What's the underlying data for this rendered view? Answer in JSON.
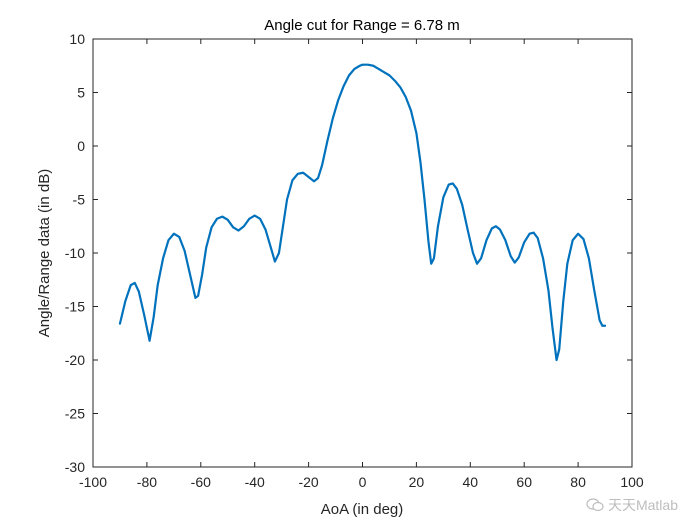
{
  "chart_data": {
    "type": "line",
    "title": "Angle cut for Range = 6.78 m",
    "xlabel": "AoA (in deg)",
    "ylabel": "Angle/Range data (in dB)",
    "xlim": [
      -100,
      100
    ],
    "ylim": [
      -30,
      10
    ],
    "xticks": [
      -100,
      -80,
      -60,
      -40,
      -20,
      0,
      20,
      40,
      60,
      80,
      100
    ],
    "yticks": [
      -30,
      -25,
      -20,
      -15,
      -10,
      -5,
      0,
      5,
      10
    ],
    "grid": false,
    "series": [
      {
        "color": "#0072BD",
        "points": [
          [
            -90,
            -16.6
          ],
          [
            -88,
            -14.5
          ],
          [
            -86,
            -13.0
          ],
          [
            -84.5,
            -12.8
          ],
          [
            -83,
            -13.6
          ],
          [
            -81,
            -15.8
          ],
          [
            -79,
            -18.2
          ],
          [
            -77.5,
            -16.0
          ],
          [
            -76,
            -13.0
          ],
          [
            -74,
            -10.5
          ],
          [
            -72,
            -8.8
          ],
          [
            -70,
            -8.2
          ],
          [
            -68,
            -8.5
          ],
          [
            -66,
            -9.8
          ],
          [
            -64,
            -12.0
          ],
          [
            -62,
            -14.2
          ],
          [
            -61,
            -14.0
          ],
          [
            -59.5,
            -12.0
          ],
          [
            -58,
            -9.5
          ],
          [
            -56,
            -7.6
          ],
          [
            -54,
            -6.8
          ],
          [
            -52,
            -6.6
          ],
          [
            -50,
            -6.9
          ],
          [
            -48,
            -7.6
          ],
          [
            -46,
            -7.9
          ],
          [
            -44,
            -7.5
          ],
          [
            -42,
            -6.8
          ],
          [
            -40,
            -6.5
          ],
          [
            -38,
            -6.8
          ],
          [
            -36,
            -7.8
          ],
          [
            -34,
            -9.5
          ],
          [
            -32.5,
            -10.8
          ],
          [
            -31,
            -10.0
          ],
          [
            -29.5,
            -7.5
          ],
          [
            -28,
            -5.0
          ],
          [
            -26,
            -3.2
          ],
          [
            -24,
            -2.6
          ],
          [
            -22,
            -2.5
          ],
          [
            -20,
            -2.9
          ],
          [
            -18,
            -3.3
          ],
          [
            -16.5,
            -3.0
          ],
          [
            -15,
            -1.8
          ],
          [
            -13,
            0.5
          ],
          [
            -11,
            2.6
          ],
          [
            -9,
            4.3
          ],
          [
            -7,
            5.6
          ],
          [
            -5,
            6.6
          ],
          [
            -3,
            7.2
          ],
          [
            -1,
            7.5
          ],
          [
            0,
            7.6
          ],
          [
            2,
            7.6
          ],
          [
            4,
            7.5
          ],
          [
            6,
            7.2
          ],
          [
            8,
            6.9
          ],
          [
            10,
            6.6
          ],
          [
            12,
            6.1
          ],
          [
            14,
            5.5
          ],
          [
            16,
            4.6
          ],
          [
            18,
            3.3
          ],
          [
            20,
            1.2
          ],
          [
            21.5,
            -1.5
          ],
          [
            23,
            -5.0
          ],
          [
            24.5,
            -9.0
          ],
          [
            25.5,
            -11.0
          ],
          [
            26.5,
            -10.5
          ],
          [
            28,
            -7.5
          ],
          [
            30,
            -4.8
          ],
          [
            32,
            -3.6
          ],
          [
            33.5,
            -3.5
          ],
          [
            35,
            -4.0
          ],
          [
            37,
            -5.5
          ],
          [
            39,
            -7.8
          ],
          [
            41,
            -10.0
          ],
          [
            42.5,
            -11.0
          ],
          [
            44,
            -10.5
          ],
          [
            46,
            -8.8
          ],
          [
            48,
            -7.7
          ],
          [
            49.5,
            -7.5
          ],
          [
            51,
            -7.8
          ],
          [
            53,
            -8.8
          ],
          [
            55,
            -10.3
          ],
          [
            56.5,
            -10.9
          ],
          [
            58,
            -10.4
          ],
          [
            60,
            -9.0
          ],
          [
            62,
            -8.2
          ],
          [
            63.5,
            -8.1
          ],
          [
            65,
            -8.6
          ],
          [
            67,
            -10.5
          ],
          [
            69,
            -13.5
          ],
          [
            70.5,
            -17.0
          ],
          [
            72,
            -20.0
          ],
          [
            73,
            -19.0
          ],
          [
            74.5,
            -14.5
          ],
          [
            76,
            -11.0
          ],
          [
            78,
            -8.8
          ],
          [
            80,
            -8.2
          ],
          [
            82,
            -8.7
          ],
          [
            84,
            -10.5
          ],
          [
            86,
            -13.5
          ],
          [
            88,
            -16.3
          ],
          [
            89,
            -16.8
          ],
          [
            90,
            -16.8
          ]
        ]
      }
    ]
  },
  "watermark": {
    "text": "天天Matlab",
    "icon": "wechat-icon"
  }
}
